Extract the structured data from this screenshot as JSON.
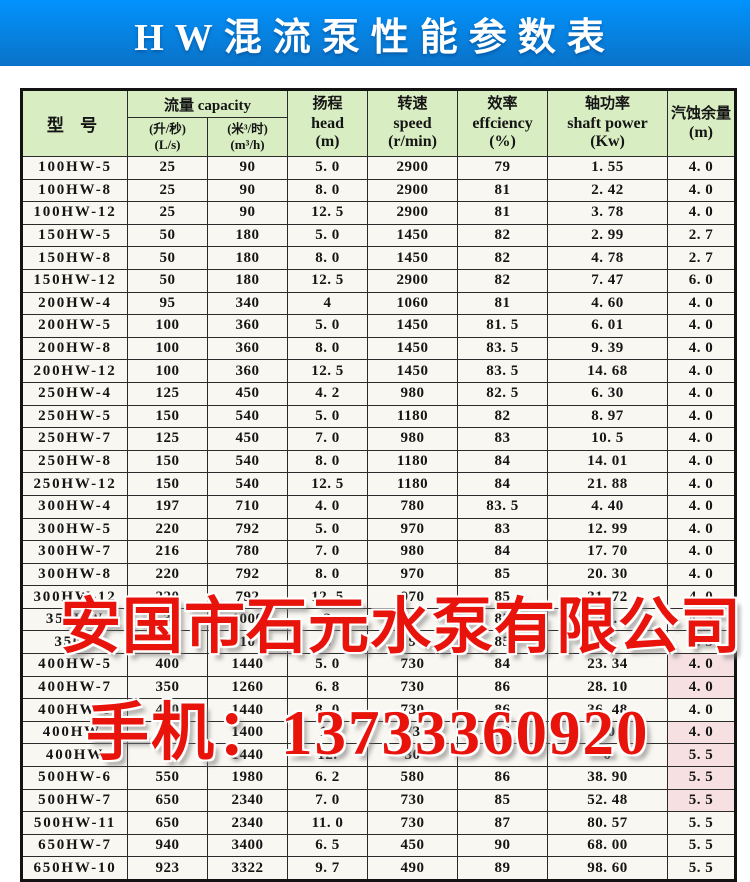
{
  "banner": {
    "title": "HW混流泵性能参数表"
  },
  "colors": {
    "banner_top": "#0192fd",
    "banner_bottom": "#0a72c9",
    "table_header_bg": "#d8eec2",
    "paper_bg": "#f9f7f1",
    "watermark_red": "#e8140c",
    "tint_pink": "#f6e0e2"
  },
  "watermarks": {
    "company": "安国市石元水泵有限公司",
    "phone": "手机：13733360920"
  },
  "table": {
    "header": {
      "model": "型  号",
      "capacity_group": "流量 capacity",
      "capacity_ls_cn": "(升/秒)",
      "capacity_ls_en": "(L/s)",
      "capacity_m3h_cn": "(米³/时)",
      "capacity_m3h_en": "(m³/h)",
      "head_cn": "扬程",
      "head_en": "head",
      "head_unit": "(m)",
      "speed_cn": "转速",
      "speed_en": "speed",
      "speed_unit": "(r/min)",
      "eff_cn": "效率",
      "eff_en": "effciency",
      "eff_unit": "(%)",
      "power_cn": "轴功率",
      "power_en": "shaft power",
      "power_unit": "(Kw)",
      "npsh_cn": "汽蚀余量",
      "npsh_unit": "(m)"
    },
    "tint_rows": [
      22,
      23,
      25,
      26,
      27,
      28
    ],
    "rows": [
      {
        "cells": [
          "100HW-5",
          "25",
          "90",
          "5. 0",
          "2900",
          "79",
          "1. 55",
          "4. 0"
        ]
      },
      {
        "cells": [
          "100HW-8",
          "25",
          "90",
          "8. 0",
          "2900",
          "81",
          "2. 42",
          "4. 0"
        ]
      },
      {
        "cells": [
          "100HW-12",
          "25",
          "90",
          "12. 5",
          "2900",
          "81",
          "3. 78",
          "4. 0"
        ]
      },
      {
        "cells": [
          "150HW-5",
          "50",
          "180",
          "5. 0",
          "1450",
          "82",
          "2. 99",
          "2. 7"
        ]
      },
      {
        "cells": [
          "150HW-8",
          "50",
          "180",
          "8. 0",
          "1450",
          "82",
          "4. 78",
          "2. 7"
        ]
      },
      {
        "cells": [
          "150HW-12",
          "50",
          "180",
          "12. 5",
          "2900",
          "82",
          "7. 47",
          "6. 0"
        ]
      },
      {
        "cells": [
          "200HW-4",
          "95",
          "340",
          "4",
          "1060",
          "81",
          "4. 60",
          "4. 0"
        ]
      },
      {
        "cells": [
          "200HW-5",
          "100",
          "360",
          "5. 0",
          "1450",
          "81. 5",
          "6. 01",
          "4. 0"
        ]
      },
      {
        "cells": [
          "200HW-8",
          "100",
          "360",
          "8. 0",
          "1450",
          "83. 5",
          "9. 39",
          "4. 0"
        ]
      },
      {
        "cells": [
          "200HW-12",
          "100",
          "360",
          "12. 5",
          "1450",
          "83. 5",
          "14. 68",
          "4. 0"
        ]
      },
      {
        "cells": [
          "250HW-4",
          "125",
          "450",
          "4. 2",
          "980",
          "82. 5",
          "6. 30",
          "4. 0"
        ]
      },
      {
        "cells": [
          "250HW-5",
          "150",
          "540",
          "5. 0",
          "1180",
          "82",
          "8. 97",
          "4. 0"
        ]
      },
      {
        "cells": [
          "250HW-7",
          "125",
          "450",
          "7. 0",
          "980",
          "83",
          "10. 5",
          "4. 0"
        ]
      },
      {
        "cells": [
          "250HW-8",
          "150",
          "540",
          "8. 0",
          "1180",
          "84",
          "14. 01",
          "4. 0"
        ]
      },
      {
        "cells": [
          "250HW-12",
          "150",
          "540",
          "12. 5",
          "1180",
          "84",
          "21. 88",
          "4. 0"
        ]
      },
      {
        "cells": [
          "300HW-4",
          "197",
          "710",
          "4. 0",
          "780",
          "83. 5",
          "4. 40",
          "4. 0"
        ]
      },
      {
        "cells": [
          "300HW-5",
          "220",
          "792",
          "5. 0",
          "970",
          "83",
          "12. 99",
          "4. 0"
        ]
      },
      {
        "cells": [
          "300HW-7",
          "216",
          "780",
          "7. 0",
          "980",
          "84",
          "17. 70",
          "4. 0"
        ]
      },
      {
        "cells": [
          "300HW-8",
          "220",
          "792",
          "8. 0",
          "970",
          "85",
          "20. 30",
          "4. 0"
        ]
      },
      {
        "cells": [
          "300HW-12",
          "220",
          "792",
          "12. 5",
          "970",
          "85",
          "31. 72",
          "4. 0"
        ]
      },
      {
        "cells": [
          "350HW",
          "3",
          "1000",
          "3",
          "9",
          "85",
          "16.",
          "4. 5"
        ]
      },
      {
        "cells": [
          "350H",
          "3",
          "10",
          "8",
          "9",
          "85",
          "25.",
          "4. 5"
        ]
      },
      {
        "cells": [
          "400HW-5",
          "400",
          "1440",
          "5. 0",
          "730",
          "84",
          "23. 34",
          "4. 0"
        ]
      },
      {
        "cells": [
          "400HW-7",
          "350",
          "1260",
          "6. 8",
          "730",
          "86",
          "28. 10",
          "4. 0"
        ]
      },
      {
        "cells": [
          "400HW-8",
          "400",
          "1440",
          "8. 0",
          "730",
          "86",
          "36. 48",
          "4. 0"
        ]
      },
      {
        "cells": [
          "400HW-",
          "36",
          "1400",
          "10",
          "73",
          "86",
          "50",
          "4. 0"
        ]
      },
      {
        "cells": [
          "400HW",
          "",
          "1440",
          "12.",
          "30",
          "",
          "0",
          "5. 5"
        ]
      },
      {
        "cells": [
          "500HW-6",
          "550",
          "1980",
          "6. 2",
          "580",
          "86",
          "38. 90",
          "5. 5"
        ]
      },
      {
        "cells": [
          "500HW-7",
          "650",
          "2340",
          "7. 0",
          "730",
          "85",
          "52. 48",
          "5. 5"
        ]
      },
      {
        "cells": [
          "500HW-11",
          "650",
          "2340",
          "11. 0",
          "730",
          "87",
          "80. 57",
          "5. 5"
        ]
      },
      {
        "cells": [
          "650HW-7",
          "940",
          "3400",
          "6. 5",
          "450",
          "90",
          "68. 00",
          "5. 5"
        ]
      },
      {
        "cells": [
          "650HW-10",
          "923",
          "3322",
          "9. 7",
          "490",
          "89",
          "98. 60",
          "5. 5"
        ]
      }
    ]
  }
}
